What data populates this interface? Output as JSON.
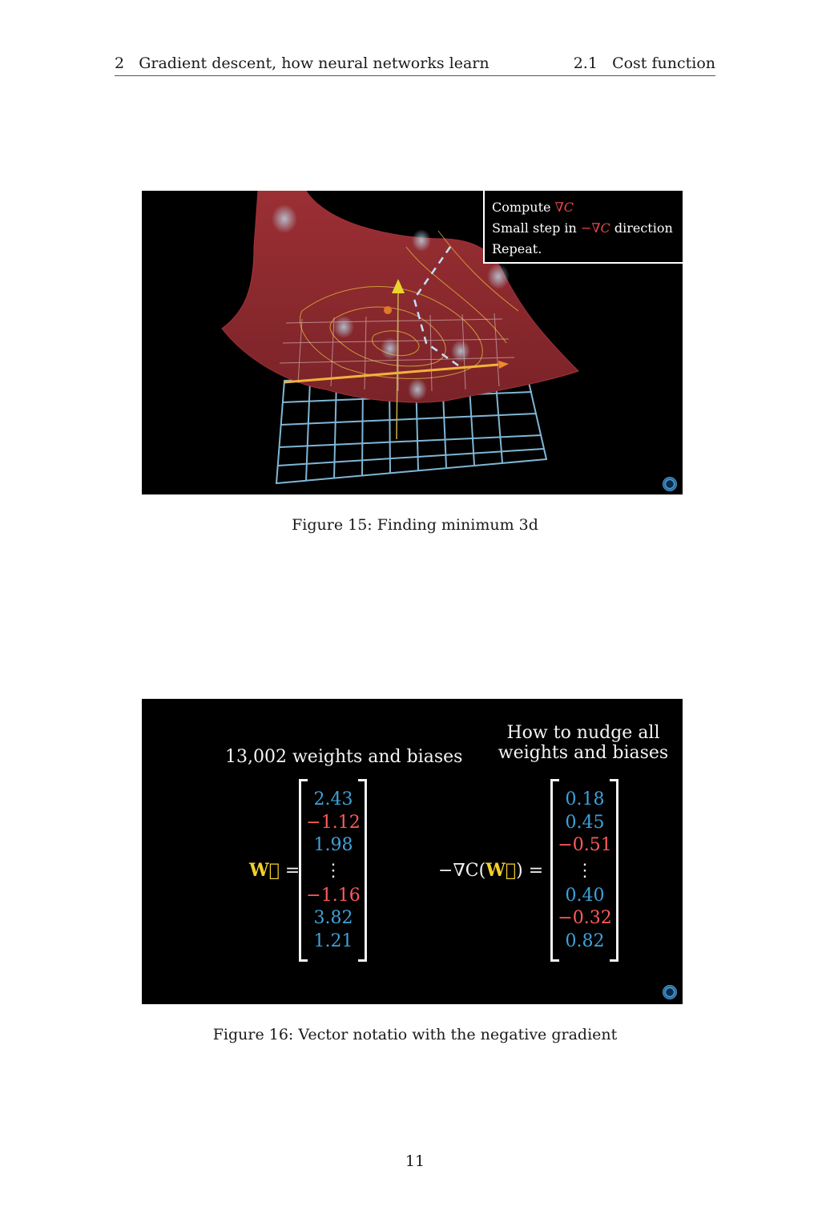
{
  "header": {
    "chapter_number": "2",
    "chapter_title": "Gradient descent, how neural networks learn",
    "section_number": "2.1",
    "section_title": "Cost function"
  },
  "figure15": {
    "caption": "Figure 15: Finding minimum 3d",
    "steps": {
      "line1_text": "Compute ",
      "line1_math": "∇C",
      "line2_text_a": "Small step in ",
      "line2_math": "−∇C",
      "line2_text_b": " direction",
      "line3_text": "Repeat."
    },
    "colors": {
      "surface": "#8b2a2e",
      "grid": "#7fb6d6",
      "contour": "#e0b53a",
      "path": "#bfe3ff"
    }
  },
  "figure16": {
    "caption": "Figure 16: Vector notatio with the negative gradient",
    "left_title": "13,002 weights and biases",
    "right_title_line1": "How to nudge all",
    "right_title_line2": "weights and biases",
    "w_symbol": "W⃗",
    "equals": "=",
    "neg_grad_prefix": "−∇C(",
    "neg_grad_suffix": ") =",
    "w_vector": [
      "2.43",
      "−1.12",
      "1.98",
      "⋮",
      "−1.16",
      "3.82",
      "1.21"
    ],
    "gradient_vector": [
      "0.18",
      "0.45",
      "−0.51",
      "⋮",
      "0.40",
      "−0.32",
      "0.82"
    ],
    "colors": {
      "positive": "#3ea2d9",
      "negative": "#ff5b5b",
      "w_symbol": "#f1d02a"
    }
  },
  "page_number": "11"
}
